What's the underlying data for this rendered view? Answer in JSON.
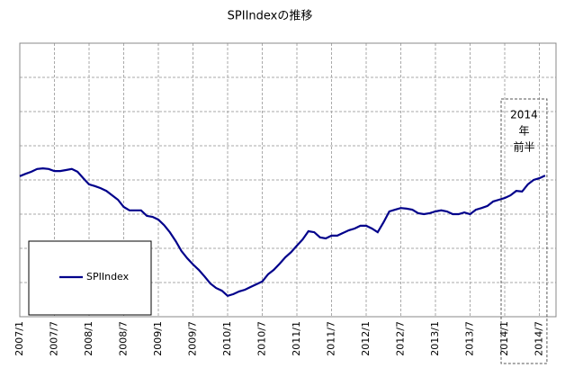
{
  "chart_data": {
    "type": "line",
    "title": "SPIIndexの推移",
    "categories": [
      "2007/1",
      null,
      null,
      null,
      null,
      null,
      "2007/7",
      null,
      null,
      null,
      null,
      null,
      "2008/1",
      null,
      null,
      null,
      null,
      null,
      "2008/7",
      null,
      null,
      null,
      null,
      null,
      "2009/1",
      null,
      null,
      null,
      null,
      null,
      "2009/7",
      null,
      null,
      null,
      null,
      null,
      "2010/1",
      null,
      null,
      null,
      null,
      null,
      "2010/7",
      null,
      null,
      null,
      null,
      null,
      "2011/1",
      null,
      null,
      null,
      null,
      null,
      "2011/7",
      null,
      null,
      null,
      null,
      null,
      "2012/1",
      null,
      null,
      null,
      null,
      null,
      "2012/7",
      null,
      null,
      null,
      null,
      null,
      "2013/1",
      null,
      null,
      null,
      null,
      null,
      "2013/7",
      null,
      null,
      null,
      null,
      null,
      "2014/1",
      null,
      null,
      null,
      null,
      null,
      "2014/7",
      null
    ],
    "series": [
      {
        "name": "SPIIndex",
        "color": "#00008b",
        "values": [
          4.11,
          4.18,
          4.24,
          4.32,
          4.34,
          4.32,
          4.26,
          4.26,
          4.29,
          4.32,
          4.24,
          4.05,
          3.87,
          3.82,
          3.76,
          3.68,
          3.55,
          3.42,
          3.21,
          3.11,
          3.11,
          3.11,
          2.95,
          2.92,
          2.84,
          2.68,
          2.47,
          2.21,
          1.92,
          1.71,
          1.53,
          1.37,
          1.18,
          0.97,
          0.84,
          0.76,
          0.61,
          0.66,
          0.74,
          0.79,
          0.87,
          0.95,
          1.03,
          1.24,
          1.37,
          1.55,
          1.74,
          1.89,
          2.08,
          2.26,
          2.5,
          2.47,
          2.32,
          2.29,
          2.37,
          2.37,
          2.45,
          2.53,
          2.58,
          2.66,
          2.66,
          2.58,
          2.47,
          2.76,
          3.08,
          3.13,
          3.18,
          3.16,
          3.13,
          3.03,
          3.0,
          3.03,
          3.08,
          3.11,
          3.08,
          3.0,
          3.0,
          3.05,
          3.0,
          3.13,
          3.18,
          3.24,
          3.37,
          3.42,
          3.47,
          3.55,
          3.68,
          3.66,
          3.87,
          4.0,
          4.05,
          4.13
        ]
      }
    ],
    "ylim": [
      0,
      8
    ],
    "yticks": [
      0,
      1,
      2,
      3,
      4,
      5,
      6,
      7,
      8
    ],
    "ytick_labels": false,
    "grid": true,
    "legend": "bottom-left",
    "annotation": [
      "2014",
      "年",
      "前半"
    ]
  }
}
